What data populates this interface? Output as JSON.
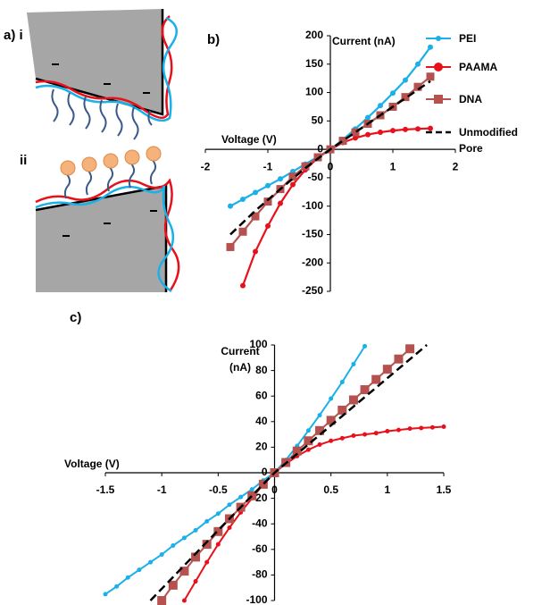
{
  "panel_a": {
    "label_i": "a) i",
    "label_ii": "ii"
  },
  "chart_data": [
    {
      "type": "line",
      "panel_label": "b)",
      "x_label": "Voltage (V)",
      "y_label": "Current (nA)",
      "xlim": [
        -2,
        2
      ],
      "xticks": [
        -2,
        -1,
        0,
        1,
        2
      ],
      "ylim": [
        -250,
        200
      ],
      "yticks": [
        -250,
        -200,
        -150,
        -100,
        -50,
        0,
        50,
        100,
        150,
        200
      ],
      "grid": false,
      "legend": "right",
      "series": [
        {
          "name": "PEI",
          "color": "#1ab0e8",
          "marker": "circle",
          "x": [
            -1.6,
            -1.4,
            -1.2,
            -1.0,
            -0.8,
            -0.6,
            -0.4,
            -0.2,
            0,
            0.2,
            0.4,
            0.6,
            0.8,
            1.0,
            1.2,
            1.4,
            1.6
          ],
          "values": [
            -100,
            -88,
            -76,
            -64,
            -52,
            -39,
            -26,
            -13,
            0,
            17,
            36,
            56,
            77,
            99,
            122,
            150,
            180
          ]
        },
        {
          "name": "PAAMA",
          "color": "#e8101a",
          "marker": "circle",
          "x": [
            -1.4,
            -1.2,
            -1.0,
            -0.8,
            -0.6,
            -0.4,
            -0.2,
            0,
            0.2,
            0.4,
            0.6,
            0.8,
            1.0,
            1.2,
            1.4,
            1.6
          ],
          "values": [
            -240,
            -180,
            -135,
            -95,
            -62,
            -36,
            -15,
            0,
            12,
            20,
            26,
            30,
            33,
            35,
            36,
            37
          ]
        },
        {
          "name": "DNA",
          "color": "#b5524f",
          "marker": "square",
          "x": [
            -1.6,
            -1.4,
            -1.2,
            -1.0,
            -0.8,
            -0.6,
            -0.4,
            -0.2,
            0,
            0.2,
            0.4,
            0.6,
            0.8,
            1.0,
            1.2,
            1.4,
            1.6
          ],
          "values": [
            -172,
            -145,
            -118,
            -92,
            -70,
            -48,
            -30,
            -14,
            0,
            15,
            30,
            45,
            60,
            75,
            92,
            110,
            128
          ]
        },
        {
          "name": "Unmodified Pore",
          "color": "#000000",
          "marker": null,
          "dashed": true,
          "x": [
            -1.6,
            -1.2,
            -0.8,
            -0.4,
            0,
            0.4,
            0.8,
            1.2,
            1.6
          ],
          "values": [
            -150,
            -108,
            -70,
            -33,
            0,
            30,
            60,
            90,
            120
          ]
        }
      ]
    },
    {
      "type": "line",
      "panel_label": "c)",
      "x_label": "Voltage (V)",
      "y_label": "Current (nA)",
      "xlim": [
        -1.5,
        1.5
      ],
      "xticks": [
        -1.5,
        -1,
        -0.5,
        0,
        0.5,
        1,
        1.5
      ],
      "ylim": [
        -100,
        100
      ],
      "yticks": [
        -100,
        -80,
        -60,
        -40,
        -20,
        0,
        20,
        40,
        60,
        80,
        100
      ],
      "grid": false,
      "legend": false,
      "series": [
        {
          "name": "PEI",
          "color": "#1ab0e8",
          "marker": "circle",
          "x": [
            -1.5,
            -1.4,
            -1.3,
            -1.2,
            -1.1,
            -1.0,
            -0.9,
            -0.8,
            -0.7,
            -0.6,
            -0.5,
            -0.4,
            -0.3,
            -0.2,
            -0.1,
            0,
            0.1,
            0.2,
            0.3,
            0.4,
            0.5,
            0.6,
            0.7,
            0.8
          ],
          "values": [
            -95,
            -89,
            -82,
            -76,
            -70,
            -64,
            -57,
            -51,
            -45,
            -38,
            -32,
            -25,
            -19,
            -13,
            -6,
            0,
            10,
            21,
            33,
            45,
            58,
            71,
            85,
            99
          ]
        },
        {
          "name": "PAAMA",
          "color": "#e8101a",
          "marker": "circle",
          "x": [
            -0.8,
            -0.7,
            -0.6,
            -0.5,
            -0.4,
            -0.3,
            -0.2,
            -0.1,
            0,
            0.1,
            0.2,
            0.3,
            0.4,
            0.5,
            0.6,
            0.7,
            0.8,
            0.9,
            1.0,
            1.1,
            1.2,
            1.3,
            1.4,
            1.5
          ],
          "values": [
            -100,
            -85,
            -70,
            -56,
            -43,
            -31,
            -20,
            -9,
            0,
            7,
            13,
            18,
            22,
            25,
            27,
            29,
            30,
            31,
            32.5,
            33.5,
            34.5,
            35,
            35.5,
            36
          ]
        },
        {
          "name": "DNA",
          "color": "#b5524f",
          "marker": "square",
          "x": [
            -1.0,
            -0.9,
            -0.8,
            -0.7,
            -0.6,
            -0.5,
            -0.4,
            -0.3,
            -0.2,
            -0.1,
            0,
            0.1,
            0.2,
            0.3,
            0.4,
            0.5,
            0.6,
            0.7,
            0.8,
            0.9,
            1.0,
            1.1,
            1.2
          ],
          "values": [
            -100,
            -88,
            -77,
            -66,
            -56,
            -46,
            -36,
            -27,
            -18,
            -9,
            0,
            8,
            17,
            25,
            33,
            41,
            49,
            57,
            65,
            73,
            81,
            89,
            97
          ]
        },
        {
          "name": "Unmodified Pore",
          "color": "#000000",
          "marker": null,
          "dashed": true,
          "x": [
            -1.1,
            -0.5,
            0,
            0.5,
            1.0,
            1.35
          ],
          "values": [
            -100,
            -45,
            0,
            37,
            74,
            100
          ]
        }
      ]
    }
  ]
}
